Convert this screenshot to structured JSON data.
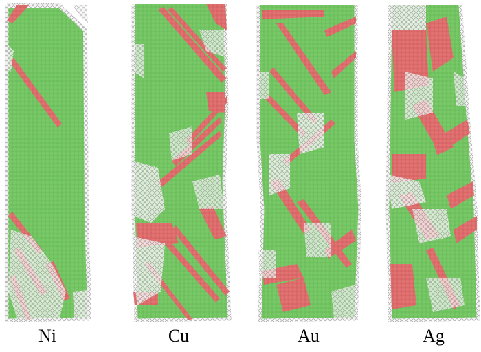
{
  "figure": {
    "colors": {
      "background": "#ffffff",
      "fcc_atoms": "#6cbf5c",
      "fcc_atoms_dark": "#58a84a",
      "hcp_atoms": "#d86464",
      "hcp_atoms_dark": "#b84848",
      "other_atoms": "#f2f2f2",
      "other_atoms_outline": "#a0a0a0"
    },
    "panels": [
      {
        "id": "ni",
        "label": "Ni"
      },
      {
        "id": "cu",
        "label": "Cu"
      },
      {
        "id": "au",
        "label": "Au"
      },
      {
        "id": "ag",
        "label": "Ag"
      }
    ]
  }
}
